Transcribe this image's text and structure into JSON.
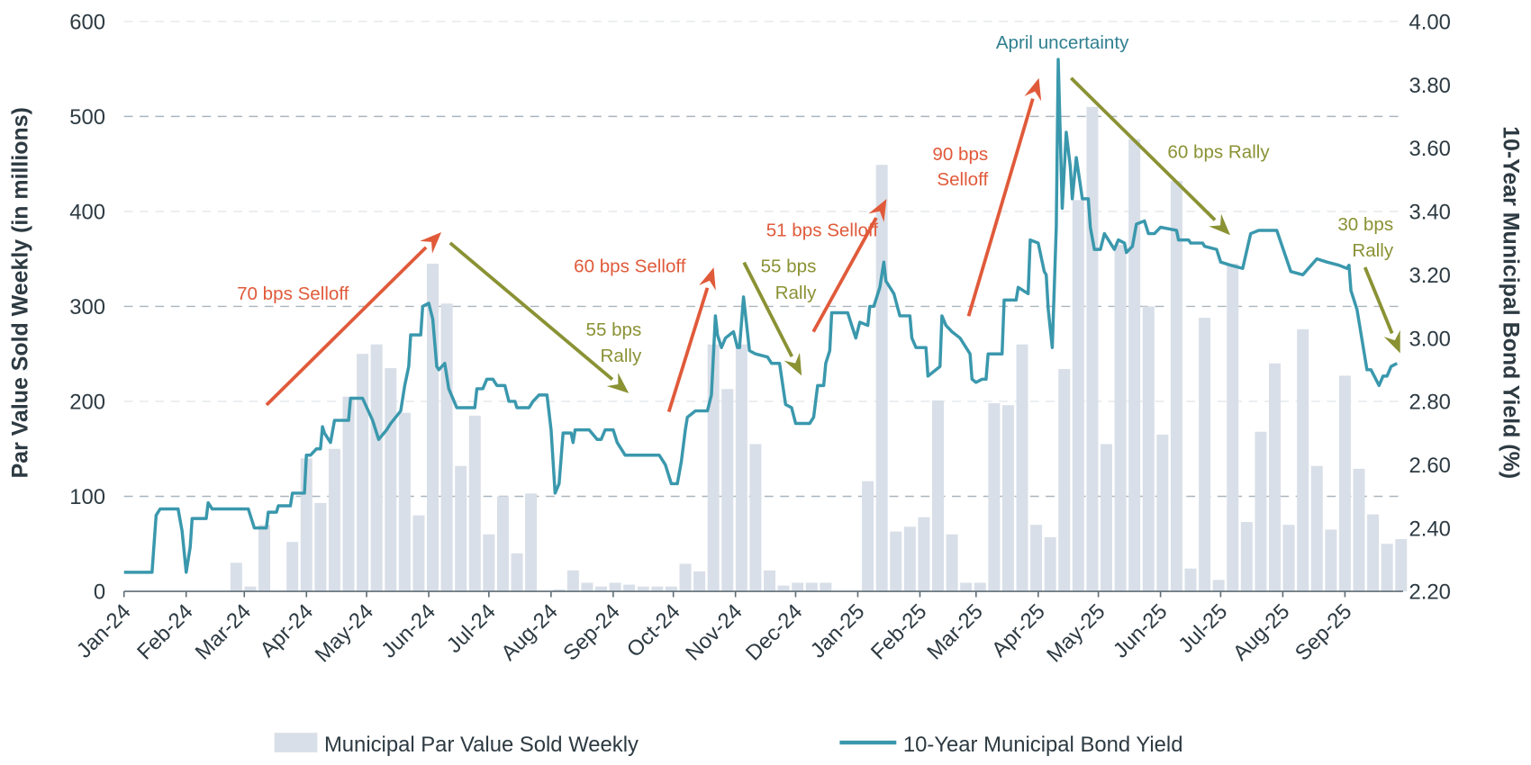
{
  "chart_data": {
    "type": "bar+line",
    "title": "",
    "left_axis": {
      "label": "Par Value Sold Weekly (in millions)",
      "ylim": [
        0,
        600
      ],
      "ticks": [
        "0",
        "100",
        "200",
        "300",
        "400",
        "500",
        "600"
      ]
    },
    "right_axis": {
      "label": "10-Year Municipal Bond Yield (%)",
      "ylim": [
        2.2,
        4.0
      ],
      "ticks": [
        "2.20",
        "2.40",
        "2.60",
        "2.80",
        "3.00",
        "3.20",
        "3.40",
        "3.60",
        "3.80",
        "4.00"
      ]
    },
    "xlim": [
      "2024-01-01",
      "2025-09-30"
    ],
    "x_tick_labels": [
      "Jan-24",
      "Feb-24",
      "Mar-24",
      "Apr-24",
      "May-24",
      "Jun-24",
      "Jul-24",
      "Aug-24",
      "Sep-24",
      "Oct-24",
      "Nov-24",
      "Dec-24",
      "Jan-25",
      "Feb-25",
      "Mar-25",
      "Apr-25",
      "May-25",
      "Jun-25",
      "Jul-25",
      "Aug-25",
      "Sep-25"
    ],
    "grid": "horizontal dashed",
    "legend_placement": "bottom",
    "colors": {
      "bars": "#d9dfe8",
      "line": "#3a98ad",
      "selloff": "#e05a3a",
      "rally": "#8a9234",
      "text": "#2d3a42",
      "april": "#2f7f8f"
    },
    "series": [
      {
        "name": "Municipal Par Value Sold Weekly",
        "type": "bar",
        "axis": "left",
        "weeks": [
          "2024-01-01",
          "2024-01-08",
          "2024-01-15",
          "2024-01-22",
          "2024-01-29",
          "2024-02-05",
          "2024-02-12",
          "2024-02-19",
          "2024-02-26",
          "2024-03-04",
          "2024-03-11",
          "2024-03-18",
          "2024-03-25",
          "2024-04-01",
          "2024-04-08",
          "2024-04-15",
          "2024-04-22",
          "2024-04-29",
          "2024-05-06",
          "2024-05-13",
          "2024-05-20",
          "2024-05-27",
          "2024-06-03",
          "2024-06-10",
          "2024-06-17",
          "2024-06-24",
          "2024-07-01",
          "2024-07-08",
          "2024-07-15",
          "2024-07-22",
          "2024-07-29",
          "2024-08-05",
          "2024-08-12",
          "2024-08-19",
          "2024-08-26",
          "2024-09-02",
          "2024-09-09",
          "2024-09-16",
          "2024-09-23",
          "2024-09-30",
          "2024-10-07",
          "2024-10-14",
          "2024-10-21",
          "2024-10-28",
          "2024-11-04",
          "2024-11-11",
          "2024-11-18",
          "2024-11-25",
          "2024-12-02",
          "2024-12-09",
          "2024-12-16",
          "2024-12-23",
          "2024-12-30",
          "2025-01-06",
          "2025-01-13",
          "2025-01-20",
          "2025-01-27",
          "2025-02-03",
          "2025-02-10",
          "2025-02-17",
          "2025-02-24",
          "2025-03-03",
          "2025-03-10",
          "2025-03-17",
          "2025-03-24",
          "2025-03-31",
          "2025-04-07",
          "2025-04-14",
          "2025-04-21",
          "2025-04-28",
          "2025-05-05",
          "2025-05-12",
          "2025-05-19",
          "2025-05-26",
          "2025-06-02",
          "2025-06-09",
          "2025-06-16",
          "2025-06-23",
          "2025-06-30",
          "2025-07-07",
          "2025-07-14",
          "2025-07-21",
          "2025-07-28",
          "2025-08-04",
          "2025-08-11",
          "2025-08-18",
          "2025-08-25",
          "2025-09-01",
          "2025-09-08",
          "2025-09-15",
          "2025-09-22",
          "2025-09-29"
        ],
        "values": [
          0,
          0,
          0,
          0,
          0,
          0,
          0,
          0,
          30,
          5,
          70,
          0,
          52,
          140,
          93,
          150,
          205,
          250,
          260,
          235,
          188,
          80,
          345,
          303,
          132,
          185,
          60,
          100,
          40,
          103,
          0,
          2,
          22,
          9,
          5,
          9,
          7,
          5,
          5,
          5,
          29,
          21,
          260,
          213,
          260,
          155,
          22,
          6,
          9,
          9,
          9,
          0,
          0,
          116,
          449,
          63,
          68,
          78,
          201,
          60,
          9,
          9,
          198,
          196,
          260,
          70,
          57,
          234,
          412,
          510,
          155,
          365,
          476,
          300,
          165,
          432,
          24,
          288,
          12,
          345,
          73,
          168,
          240,
          70,
          276,
          132,
          65,
          227,
          129,
          81,
          50,
          55
        ]
      },
      {
        "name": "10-Year Municipal Bond Yield",
        "type": "line",
        "axis": "right",
        "points": [
          [
            "2024-01-01",
            2.26
          ],
          [
            "2024-01-15",
            2.26
          ],
          [
            "2024-01-17",
            2.44
          ],
          [
            "2024-01-19",
            2.46
          ],
          [
            "2024-01-28",
            2.46
          ],
          [
            "2024-01-30",
            2.39
          ],
          [
            "2024-02-01",
            2.26
          ],
          [
            "2024-02-03",
            2.34
          ],
          [
            "2024-02-04",
            2.43
          ],
          [
            "2024-02-11",
            2.43
          ],
          [
            "2024-02-12",
            2.48
          ],
          [
            "2024-02-14",
            2.46
          ],
          [
            "2024-03-03",
            2.46
          ],
          [
            "2024-03-06",
            2.4
          ],
          [
            "2024-03-12",
            2.4
          ],
          [
            "2024-03-13",
            2.45
          ],
          [
            "2024-03-17",
            2.45
          ],
          [
            "2024-03-18",
            2.47
          ],
          [
            "2024-03-24",
            2.47
          ],
          [
            "2024-03-25",
            2.51
          ],
          [
            "2024-03-31",
            2.51
          ],
          [
            "2024-04-01",
            2.63
          ],
          [
            "2024-04-03",
            2.63
          ],
          [
            "2024-04-06",
            2.65
          ],
          [
            "2024-04-08",
            2.65
          ],
          [
            "2024-04-09",
            2.72
          ],
          [
            "2024-04-10",
            2.7
          ],
          [
            "2024-04-13",
            2.67
          ],
          [
            "2024-04-15",
            2.74
          ],
          [
            "2024-04-22",
            2.74
          ],
          [
            "2024-04-23",
            2.81
          ],
          [
            "2024-04-29",
            2.81
          ],
          [
            "2024-05-04",
            2.74
          ],
          [
            "2024-05-07",
            2.68
          ],
          [
            "2024-05-11",
            2.71
          ],
          [
            "2024-05-13",
            2.73
          ],
          [
            "2024-05-18",
            2.77
          ],
          [
            "2024-05-20",
            2.85
          ],
          [
            "2024-05-22",
            2.91
          ],
          [
            "2024-05-23",
            3.01
          ],
          [
            "2024-05-28",
            3.01
          ],
          [
            "2024-05-29",
            3.1
          ],
          [
            "2024-06-01",
            3.11
          ],
          [
            "2024-06-03",
            3.06
          ],
          [
            "2024-06-05",
            2.91
          ],
          [
            "2024-06-06",
            2.9
          ],
          [
            "2024-06-09",
            2.92
          ],
          [
            "2024-06-11",
            2.84
          ],
          [
            "2024-06-15",
            2.78
          ],
          [
            "2024-06-24",
            2.78
          ],
          [
            "2024-06-25",
            2.84
          ],
          [
            "2024-06-28",
            2.84
          ],
          [
            "2024-06-30",
            2.87
          ],
          [
            "2024-07-03",
            2.87
          ],
          [
            "2024-07-05",
            2.85
          ],
          [
            "2024-07-09",
            2.85
          ],
          [
            "2024-07-11",
            2.8
          ],
          [
            "2024-07-14",
            2.8
          ],
          [
            "2024-07-15",
            2.78
          ],
          [
            "2024-07-21",
            2.78
          ],
          [
            "2024-07-23",
            2.8
          ],
          [
            "2024-07-26",
            2.82
          ],
          [
            "2024-07-30",
            2.82
          ],
          [
            "2024-08-01",
            2.71
          ],
          [
            "2024-08-03",
            2.51
          ],
          [
            "2024-08-05",
            2.54
          ],
          [
            "2024-08-07",
            2.7
          ],
          [
            "2024-08-11",
            2.7
          ],
          [
            "2024-08-12",
            2.67
          ],
          [
            "2024-08-13",
            2.71
          ],
          [
            "2024-08-20",
            2.71
          ],
          [
            "2024-08-24",
            2.68
          ],
          [
            "2024-08-26",
            2.68
          ],
          [
            "2024-08-28",
            2.71
          ],
          [
            "2024-09-01",
            2.71
          ],
          [
            "2024-09-03",
            2.67
          ],
          [
            "2024-09-07",
            2.63
          ],
          [
            "2024-09-24",
            2.63
          ],
          [
            "2024-09-27",
            2.6
          ],
          [
            "2024-09-30",
            2.54
          ],
          [
            "2024-10-03",
            2.54
          ],
          [
            "2024-10-05",
            2.61
          ],
          [
            "2024-10-07",
            2.71
          ],
          [
            "2024-10-08",
            2.75
          ],
          [
            "2024-10-12",
            2.77
          ],
          [
            "2024-10-18",
            2.77
          ],
          [
            "2024-10-20",
            2.82
          ],
          [
            "2024-10-22",
            3.07
          ],
          [
            "2024-10-23",
            3.01
          ],
          [
            "2024-10-25",
            2.97
          ],
          [
            "2024-10-27",
            3.0
          ],
          [
            "2024-10-31",
            3.02
          ],
          [
            "2024-11-02",
            2.97
          ],
          [
            "2024-11-03",
            2.97
          ],
          [
            "2024-11-05",
            3.13
          ],
          [
            "2024-11-08",
            2.96
          ],
          [
            "2024-11-11",
            2.95
          ],
          [
            "2024-11-17",
            2.94
          ],
          [
            "2024-11-19",
            2.92
          ],
          [
            "2024-11-23",
            2.92
          ],
          [
            "2024-11-26",
            2.79
          ],
          [
            "2024-11-29",
            2.78
          ],
          [
            "2024-12-01",
            2.73
          ],
          [
            "2024-12-08",
            2.73
          ],
          [
            "2024-12-10",
            2.75
          ],
          [
            "2024-12-12",
            2.85
          ],
          [
            "2024-12-15",
            2.85
          ],
          [
            "2024-12-16",
            2.92
          ],
          [
            "2024-12-18",
            2.96
          ],
          [
            "2024-12-19",
            3.08
          ],
          [
            "2024-12-27",
            3.08
          ],
          [
            "2024-12-29",
            3.04
          ],
          [
            "2024-12-31",
            3.0
          ],
          [
            "2025-01-02",
            3.05
          ],
          [
            "2025-01-06",
            3.04
          ],
          [
            "2025-01-07",
            3.1
          ],
          [
            "2025-01-09",
            3.1
          ],
          [
            "2025-01-12",
            3.16
          ],
          [
            "2025-01-14",
            3.24
          ],
          [
            "2025-01-15",
            3.18
          ],
          [
            "2025-01-19",
            3.14
          ],
          [
            "2025-01-22",
            3.07
          ],
          [
            "2025-01-27",
            3.07
          ],
          [
            "2025-01-28",
            3.0
          ],
          [
            "2025-01-30",
            2.97
          ],
          [
            "2025-02-04",
            2.97
          ],
          [
            "2025-02-05",
            2.88
          ],
          [
            "2025-02-11",
            2.91
          ],
          [
            "2025-02-12",
            3.07
          ],
          [
            "2025-02-14",
            3.04
          ],
          [
            "2025-02-17",
            3.02
          ],
          [
            "2025-02-21",
            3.0
          ],
          [
            "2025-02-24",
            2.97
          ],
          [
            "2025-02-26",
            2.95
          ],
          [
            "2025-02-27",
            2.87
          ],
          [
            "2025-03-01",
            2.86
          ],
          [
            "2025-03-04",
            2.87
          ],
          [
            "2025-03-06",
            2.87
          ],
          [
            "2025-03-07",
            2.95
          ],
          [
            "2025-03-14",
            2.95
          ],
          [
            "2025-03-15",
            3.12
          ],
          [
            "2025-03-21",
            3.12
          ],
          [
            "2025-03-22",
            3.16
          ],
          [
            "2025-03-27",
            3.14
          ],
          [
            "2025-03-28",
            3.31
          ],
          [
            "2025-04-01",
            3.3
          ],
          [
            "2025-04-04",
            3.21
          ],
          [
            "2025-04-05",
            3.2
          ],
          [
            "2025-04-06",
            3.09
          ],
          [
            "2025-04-08",
            2.97
          ],
          [
            "2025-04-10",
            3.35
          ],
          [
            "2025-04-11",
            3.88
          ],
          [
            "2025-04-13",
            3.41
          ],
          [
            "2025-04-15",
            3.65
          ],
          [
            "2025-04-17",
            3.54
          ],
          [
            "2025-04-18",
            3.44
          ],
          [
            "2025-04-20",
            3.57
          ],
          [
            "2025-04-23",
            3.44
          ],
          [
            "2025-04-26",
            3.44
          ],
          [
            "2025-04-27",
            3.35
          ],
          [
            "2025-04-29",
            3.28
          ],
          [
            "2025-05-02",
            3.28
          ],
          [
            "2025-05-04",
            3.33
          ],
          [
            "2025-05-06",
            3.31
          ],
          [
            "2025-05-09",
            3.28
          ],
          [
            "2025-05-11",
            3.31
          ],
          [
            "2025-05-14",
            3.3
          ],
          [
            "2025-05-15",
            3.27
          ],
          [
            "2025-05-18",
            3.29
          ],
          [
            "2025-05-20",
            3.36
          ],
          [
            "2025-05-24",
            3.37
          ],
          [
            "2025-05-26",
            3.33
          ],
          [
            "2025-05-29",
            3.33
          ],
          [
            "2025-06-01",
            3.35
          ],
          [
            "2025-06-09",
            3.34
          ],
          [
            "2025-06-10",
            3.31
          ],
          [
            "2025-06-15",
            3.31
          ],
          [
            "2025-06-16",
            3.3
          ],
          [
            "2025-06-22",
            3.3
          ],
          [
            "2025-06-23",
            3.29
          ],
          [
            "2025-06-29",
            3.28
          ],
          [
            "2025-07-01",
            3.24
          ],
          [
            "2025-07-06",
            3.23
          ],
          [
            "2025-07-12",
            3.22
          ],
          [
            "2025-07-16",
            3.33
          ],
          [
            "2025-07-20",
            3.34
          ],
          [
            "2025-07-29",
            3.34
          ],
          [
            "2025-08-05",
            3.21
          ],
          [
            "2025-08-11",
            3.2
          ],
          [
            "2025-08-18",
            3.25
          ],
          [
            "2025-08-23",
            3.24
          ],
          [
            "2025-08-29",
            3.23
          ],
          [
            "2025-09-02",
            3.22
          ],
          [
            "2025-09-03",
            3.23
          ],
          [
            "2025-09-04",
            3.15
          ],
          [
            "2025-09-07",
            3.09
          ],
          [
            "2025-09-12",
            2.9
          ],
          [
            "2025-09-14",
            2.9
          ],
          [
            "2025-09-18",
            2.85
          ],
          [
            "2025-09-20",
            2.88
          ],
          [
            "2025-09-22",
            2.88
          ],
          [
            "2025-09-24",
            2.91
          ],
          [
            "2025-09-27",
            2.92
          ]
        ]
      }
    ],
    "annotations": [
      {
        "lines": [
          "70 bps Selloff"
        ],
        "kind": "selloff"
      },
      {
        "lines": [
          "55 bps",
          "Rally"
        ],
        "kind": "rally"
      },
      {
        "lines": [
          "60 bps Selloff"
        ],
        "kind": "selloff"
      },
      {
        "lines": [
          "55 bps",
          "Rally"
        ],
        "kind": "rally"
      },
      {
        "lines": [
          "51 bps Selloff"
        ],
        "kind": "selloff"
      },
      {
        "lines": [
          "90 bps",
          "Selloff"
        ],
        "kind": "selloff"
      },
      {
        "lines": [
          "April uncertainty"
        ],
        "kind": "april"
      },
      {
        "lines": [
          "60 bps Rally"
        ],
        "kind": "rally"
      },
      {
        "lines": [
          "30 bps",
          "Rally"
        ],
        "kind": "rally"
      }
    ],
    "legend": [
      "Municipal Par Value Sold Weekly",
      "10-Year Municipal Bond Yield"
    ]
  }
}
